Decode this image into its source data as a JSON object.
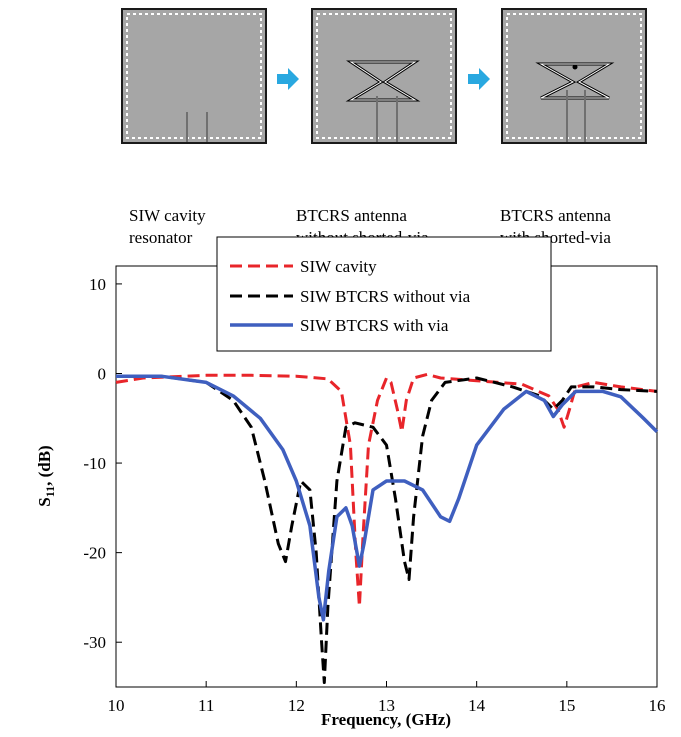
{
  "stages": [
    {
      "name": "siw-cavity-resonator",
      "caption_lines": [
        "SIW cavity",
        "resonator"
      ]
    },
    {
      "name": "btcrs-without-via",
      "caption_lines": [
        "BTCRS antenna",
        "without shorted-via"
      ]
    },
    {
      "name": "btcrs-with-via",
      "caption_lines": [
        "BTCRS antenna",
        "with shorted-via"
      ]
    }
  ],
  "colors": {
    "siw_cavity": "#e8252a",
    "without_via": "#000000",
    "with_via": "#3f5fbf",
    "arrow": "#29a8e0",
    "panel": "#a6a6a6"
  },
  "chart_data": {
    "type": "line",
    "xlabel": "Frequency, (GHz)",
    "ylabel_main": "S",
    "ylabel_sub": "11",
    "ylabel_tail": ", (dB)",
    "xlim": [
      10,
      16
    ],
    "ylim": [
      -35,
      12
    ],
    "xticks": [
      10,
      11,
      12,
      13,
      14,
      15,
      16
    ],
    "yticks": [
      10,
      0,
      -10,
      -20,
      -30
    ],
    "grid": false,
    "legend_position": "top-center",
    "series": [
      {
        "name": "SIW cavity",
        "color": "#e8252a",
        "dash": "dashed",
        "points": [
          [
            10,
            -1
          ],
          [
            10.3,
            -0.5
          ],
          [
            11,
            -0.2
          ],
          [
            11.5,
            -0.2
          ],
          [
            12,
            -0.3
          ],
          [
            12.35,
            -0.6
          ],
          [
            12.5,
            -2
          ],
          [
            12.6,
            -8
          ],
          [
            12.66,
            -20
          ],
          [
            12.7,
            -26
          ],
          [
            12.74,
            -18
          ],
          [
            12.8,
            -8
          ],
          [
            12.9,
            -3
          ],
          [
            13.0,
            -0.5
          ],
          [
            13.05,
            -1
          ],
          [
            13.12,
            -4
          ],
          [
            13.17,
            -6.5
          ],
          [
            13.22,
            -3
          ],
          [
            13.3,
            -0.5
          ],
          [
            13.45,
            -0.1
          ],
          [
            13.6,
            -0.5
          ],
          [
            14,
            -0.8
          ],
          [
            14.5,
            -1.2
          ],
          [
            14.8,
            -2.5
          ],
          [
            14.9,
            -4
          ],
          [
            14.97,
            -6
          ],
          [
            15.03,
            -4
          ],
          [
            15.1,
            -1.5
          ],
          [
            15.3,
            -1
          ],
          [
            15.6,
            -1.5
          ],
          [
            16,
            -2
          ]
        ]
      },
      {
        "name": "SIW BTCRS without via",
        "color": "#000000",
        "dash": "dashed",
        "points": [
          [
            10,
            -0.3
          ],
          [
            10.5,
            -0.3
          ],
          [
            11,
            -1
          ],
          [
            11.3,
            -3
          ],
          [
            11.5,
            -6
          ],
          [
            11.65,
            -12
          ],
          [
            11.8,
            -19
          ],
          [
            11.88,
            -21
          ],
          [
            11.95,
            -17
          ],
          [
            12.05,
            -12
          ],
          [
            12.15,
            -13
          ],
          [
            12.22,
            -20
          ],
          [
            12.28,
            -30
          ],
          [
            12.31,
            -34.5
          ],
          [
            12.35,
            -26
          ],
          [
            12.45,
            -12
          ],
          [
            12.55,
            -6
          ],
          [
            12.65,
            -5.5
          ],
          [
            12.85,
            -6
          ],
          [
            13.0,
            -8
          ],
          [
            13.1,
            -14
          ],
          [
            13.2,
            -21
          ],
          [
            13.25,
            -23
          ],
          [
            13.3,
            -16
          ],
          [
            13.4,
            -7
          ],
          [
            13.5,
            -3
          ],
          [
            13.65,
            -1
          ],
          [
            14,
            -0.5
          ],
          [
            14.4,
            -1.5
          ],
          [
            14.7,
            -2.5
          ],
          [
            14.85,
            -4
          ],
          [
            14.95,
            -3
          ],
          [
            15.05,
            -1.5
          ],
          [
            15.3,
            -1.5
          ],
          [
            15.6,
            -1.8
          ],
          [
            16,
            -2
          ]
        ]
      },
      {
        "name": "SIW BTCRS with via",
        "color": "#3f5fbf",
        "dash": "solid",
        "points": [
          [
            10,
            -0.3
          ],
          [
            10.5,
            -0.3
          ],
          [
            11,
            -1
          ],
          [
            11.3,
            -2.5
          ],
          [
            11.6,
            -5
          ],
          [
            11.85,
            -8.5
          ],
          [
            12.0,
            -12
          ],
          [
            12.15,
            -17
          ],
          [
            12.25,
            -25
          ],
          [
            12.3,
            -27.5
          ],
          [
            12.36,
            -22
          ],
          [
            12.45,
            -16
          ],
          [
            12.55,
            -15
          ],
          [
            12.62,
            -17
          ],
          [
            12.7,
            -21.5
          ],
          [
            12.75,
            -19
          ],
          [
            12.85,
            -13
          ],
          [
            13.0,
            -12
          ],
          [
            13.2,
            -12
          ],
          [
            13.4,
            -13
          ],
          [
            13.6,
            -16
          ],
          [
            13.7,
            -16.5
          ],
          [
            13.8,
            -14
          ],
          [
            14.0,
            -8
          ],
          [
            14.3,
            -4
          ],
          [
            14.55,
            -2
          ],
          [
            14.75,
            -3
          ],
          [
            14.85,
            -4.8
          ],
          [
            14.95,
            -3.5
          ],
          [
            15.1,
            -2
          ],
          [
            15.4,
            -2
          ],
          [
            15.6,
            -2.6
          ],
          [
            15.85,
            -5
          ],
          [
            16,
            -6.5
          ]
        ]
      }
    ]
  }
}
